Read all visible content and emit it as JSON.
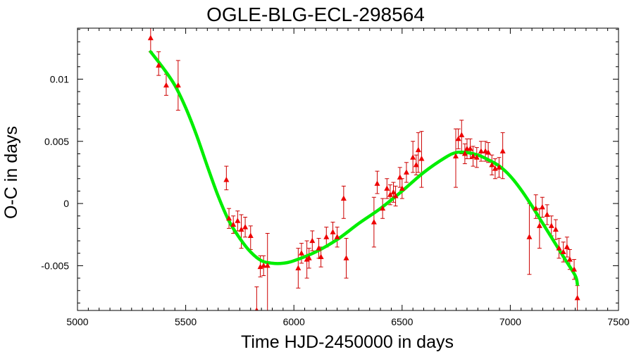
{
  "chart_data": {
    "type": "scatter",
    "title": "OGLE-BLG-ECL-298564",
    "xlabel": "Time HJD-2450000 in days",
    "ylabel": "O-C in days",
    "xlim": [
      5000,
      7500
    ],
    "ylim": [
      -0.0086,
      0.0141
    ],
    "grid": false,
    "legend": "none",
    "x_ticks": [
      5000,
      5500,
      6000,
      6500,
      7000,
      7500
    ],
    "x_tick_labels": [
      "5000",
      "5500",
      "6000",
      "6500",
      "7000",
      "7500"
    ],
    "y_ticks": [
      -0.005,
      0,
      0.005,
      0.01
    ],
    "y_tick_labels": [
      "-0.005",
      "0",
      "0.005",
      "0.01"
    ],
    "colors": {
      "points": "#ee0000",
      "errorbars": "#cc0000",
      "fit": "#00ee00",
      "axes": "#000000"
    },
    "series": [
      {
        "kind": "points-with-errorbars",
        "points": [
          {
            "x": 5338,
            "y": 0.0133,
            "lo": 0.0122,
            "hi": 0.0141
          },
          {
            "x": 5375,
            "y": 0.0111,
            "lo": 0.0103,
            "hi": 0.0122
          },
          {
            "x": 5410,
            "y": 0.0095,
            "lo": 0.0087,
            "hi": 0.0104
          },
          {
            "x": 5465,
            "y": 0.0095,
            "lo": 0.0075,
            "hi": 0.0115
          },
          {
            "x": 5688,
            "y": 0.0019,
            "lo": 0.0011,
            "hi": 0.003
          },
          {
            "x": 5700,
            "y": -0.0012,
            "lo": -0.002,
            "hi": -0.0004
          },
          {
            "x": 5720,
            "y": -0.0017,
            "lo": -0.0024,
            "hi": -0.001
          },
          {
            "x": 5740,
            "y": -0.0014,
            "lo": -0.0022,
            "hi": -0.0006
          },
          {
            "x": 5757,
            "y": -0.0021,
            "lo": -0.0036,
            "hi": -0.0009
          },
          {
            "x": 5775,
            "y": -0.0019,
            "lo": -0.0027,
            "hi": -0.0011
          },
          {
            "x": 5800,
            "y": -0.0026,
            "lo": -0.0037,
            "hi": -0.0018
          },
          {
            "x": 5828,
            "y": -0.0086,
            "lo": -0.0095,
            "hi": -0.0067
          },
          {
            "x": 5845,
            "y": -0.0051,
            "lo": -0.0059,
            "hi": -0.0042
          },
          {
            "x": 5860,
            "y": -0.005,
            "lo": -0.0058,
            "hi": -0.0042
          },
          {
            "x": 5878,
            "y": -0.005,
            "lo": -0.01,
            "hi": -0.0024
          },
          {
            "x": 6020,
            "y": -0.0052,
            "lo": -0.0068,
            "hi": -0.0036
          },
          {
            "x": 6035,
            "y": -0.004,
            "lo": -0.0048,
            "hi": -0.0032
          },
          {
            "x": 6060,
            "y": -0.0045,
            "lo": -0.006,
            "hi": -0.003
          },
          {
            "x": 6070,
            "y": -0.0044,
            "lo": -0.0052,
            "hi": -0.0036
          },
          {
            "x": 6085,
            "y": -0.003,
            "lo": -0.0038,
            "hi": -0.0022
          },
          {
            "x": 6115,
            "y": -0.0036,
            "lo": -0.0044,
            "hi": -0.0028
          },
          {
            "x": 6125,
            "y": -0.0043,
            "lo": -0.0051,
            "hi": -0.0035
          },
          {
            "x": 6150,
            "y": -0.0027,
            "lo": -0.0035,
            "hi": -0.0019
          },
          {
            "x": 6180,
            "y": -0.0023,
            "lo": -0.0031,
            "hi": -0.0015
          },
          {
            "x": 6200,
            "y": -0.0027,
            "lo": -0.0035,
            "hi": -0.0019
          },
          {
            "x": 6230,
            "y": 0.0004,
            "lo": -0.0012,
            "hi": 0.0014
          },
          {
            "x": 6242,
            "y": -0.0044,
            "lo": -0.006,
            "hi": -0.0028
          },
          {
            "x": 6370,
            "y": -0.0015,
            "lo": -0.0035,
            "hi": 0.0005
          },
          {
            "x": 6385,
            "y": 0.0016,
            "lo": 0.0008,
            "hi": 0.0026
          },
          {
            "x": 6410,
            "y": -0.0004,
            "lo": -0.0012,
            "hi": 0.0004
          },
          {
            "x": 6430,
            "y": 0.0012,
            "lo": 0.0004,
            "hi": 0.002
          },
          {
            "x": 6445,
            "y": 0.0007,
            "lo": -0.0001,
            "hi": 0.0015
          },
          {
            "x": 6460,
            "y": 0.0009,
            "lo": 0.0001,
            "hi": 0.0017
          },
          {
            "x": 6470,
            "y": 0.0006,
            "lo": -0.0002,
            "hi": 0.0014
          },
          {
            "x": 6490,
            "y": 0.0021,
            "lo": 0.0013,
            "hi": 0.0029
          },
          {
            "x": 6500,
            "y": 0.0012,
            "lo": 0.0004,
            "hi": 0.002
          },
          {
            "x": 6520,
            "y": 0.0025,
            "lo": 0.0017,
            "hi": 0.0033
          },
          {
            "x": 6550,
            "y": 0.0037,
            "lo": 0.0025,
            "hi": 0.005
          },
          {
            "x": 6565,
            "y": 0.0031,
            "lo": 0.0023,
            "hi": 0.0039
          },
          {
            "x": 6575,
            "y": 0.0043,
            "lo": 0.0025,
            "hi": 0.0057
          },
          {
            "x": 6590,
            "y": 0.0036,
            "lo": 0.0013,
            "hi": 0.0058
          },
          {
            "x": 6748,
            "y": 0.0038,
            "lo": 0.0013,
            "hi": 0.006
          },
          {
            "x": 6760,
            "y": 0.0052,
            "lo": 0.0044,
            "hi": 0.006
          },
          {
            "x": 6775,
            "y": 0.0055,
            "lo": 0.004,
            "hi": 0.0067
          },
          {
            "x": 6790,
            "y": 0.004,
            "lo": 0.0032,
            "hi": 0.0048
          },
          {
            "x": 6800,
            "y": 0.0044,
            "lo": 0.0036,
            "hi": 0.0052
          },
          {
            "x": 6815,
            "y": 0.0044,
            "lo": 0.0036,
            "hi": 0.0052
          },
          {
            "x": 6828,
            "y": 0.0038,
            "lo": 0.003,
            "hi": 0.0046
          },
          {
            "x": 6845,
            "y": 0.0037,
            "lo": 0.0029,
            "hi": 0.0045
          },
          {
            "x": 6865,
            "y": 0.0042,
            "lo": 0.0034,
            "hi": 0.005
          },
          {
            "x": 6885,
            "y": 0.0042,
            "lo": 0.0034,
            "hi": 0.005
          },
          {
            "x": 6898,
            "y": 0.0041,
            "lo": 0.0033,
            "hi": 0.0049
          },
          {
            "x": 6915,
            "y": 0.0031,
            "lo": 0.0023,
            "hi": 0.0039
          },
          {
            "x": 6930,
            "y": 0.0028,
            "lo": 0.002,
            "hi": 0.0036
          },
          {
            "x": 6948,
            "y": 0.0029,
            "lo": 0.0021,
            "hi": 0.0037
          },
          {
            "x": 6965,
            "y": 0.0042,
            "lo": 0.002,
            "hi": 0.0057
          },
          {
            "x": 7088,
            "y": -0.0027,
            "lo": -0.0057,
            "hi": 0.0
          },
          {
            "x": 7118,
            "y": -0.0004,
            "lo": -0.0012,
            "hi": 0.0007
          },
          {
            "x": 7135,
            "y": -0.0018,
            "lo": -0.0036,
            "hi": -0.0004
          },
          {
            "x": 7148,
            "y": -0.0003,
            "lo": -0.0011,
            "hi": 0.0005
          },
          {
            "x": 7170,
            "y": -0.0009,
            "lo": -0.0017,
            "hi": -0.0001
          },
          {
            "x": 7190,
            "y": -0.0018,
            "lo": -0.0026,
            "hi": -0.001
          },
          {
            "x": 7210,
            "y": -0.0021,
            "lo": -0.0029,
            "hi": -0.0013
          },
          {
            "x": 7225,
            "y": -0.0036,
            "lo": -0.0044,
            "hi": -0.0028
          },
          {
            "x": 7245,
            "y": -0.0039,
            "lo": -0.0047,
            "hi": -0.0031
          },
          {
            "x": 7262,
            "y": -0.0035,
            "lo": -0.0043,
            "hi": -0.0027
          },
          {
            "x": 7275,
            "y": -0.0045,
            "lo": -0.0053,
            "hi": -0.0037
          },
          {
            "x": 7295,
            "y": -0.0053,
            "lo": -0.0061,
            "hi": -0.0045
          },
          {
            "x": 7310,
            "y": -0.0076,
            "lo": -0.0086,
            "hi": -0.0066
          }
        ]
      },
      {
        "kind": "fit-curve",
        "x": [
          5338,
          5400,
          5450,
          5500,
          5550,
          5600,
          5650,
          5700,
          5750,
          5800,
          5850,
          5900,
          5950,
          6000,
          6100,
          6200,
          6300,
          6400,
          6500,
          6600,
          6700,
          6750,
          6800,
          6850,
          6900,
          6950,
          7000,
          7050,
          7100,
          7150,
          7200,
          7250,
          7300,
          7310
        ],
        "y": [
          0.0122,
          0.0108,
          0.0095,
          0.0077,
          0.0055,
          0.003,
          0.0006,
          -0.0014,
          -0.0028,
          -0.0039,
          -0.0046,
          -0.0048,
          -0.0048,
          -0.0046,
          -0.0039,
          -0.0029,
          -0.0016,
          -0.0004,
          0.001,
          0.0025,
          0.0037,
          0.0041,
          0.0041,
          0.0039,
          0.0035,
          0.003,
          0.0022,
          0.0011,
          -0.0002,
          -0.0016,
          -0.003,
          -0.0044,
          -0.0058,
          -0.0065
        ]
      }
    ]
  }
}
